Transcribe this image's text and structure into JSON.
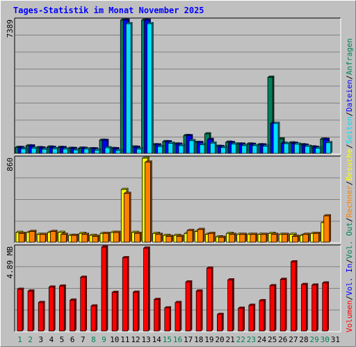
{
  "title": "Tages-Statistik im Monat November 2025",
  "colors": {
    "background": "#c0c0c0",
    "title": "#0000ff",
    "hits": "#00805a",
    "files": "#0000ff",
    "pages": "#00e0ff",
    "visits": "#ffff00",
    "sites": "#ff8000",
    "kbytes": "#ff0000",
    "weekend_label": "#00805a"
  },
  "legend_right": [
    {
      "text": "Volumen",
      "color": "#ff0000"
    },
    {
      "text": "/",
      "color": "#000000"
    },
    {
      "text": "Vol. In",
      "color": "#0000ff"
    },
    {
      "text": "/",
      "color": "#000000"
    },
    {
      "text": "Vol. Out",
      "color": "#00805a"
    },
    {
      "text": "/",
      "color": "#000000"
    },
    {
      "text": "Rechner",
      "color": "#ff8000"
    },
    {
      "text": "/",
      "color": "#000000"
    },
    {
      "text": "Besuche",
      "color": "#ffff00"
    },
    {
      "text": "/",
      "color": "#000000"
    },
    {
      "text": "Seiten",
      "color": "#00e0ff"
    },
    {
      "text": "/",
      "color": "#000000"
    },
    {
      "text": "Dateien",
      "color": "#0000ff"
    },
    {
      "text": "/",
      "color": "#000000"
    },
    {
      "text": "Anfragen",
      "color": "#00805a"
    }
  ],
  "chart_data": [
    {
      "type": "bar",
      "panel": "top",
      "ylabel": "7389",
      "ylim": [
        0,
        7389
      ],
      "grid": true,
      "categories": [
        "1",
        "2",
        "3",
        "4",
        "5",
        "6",
        "7",
        "8",
        "9",
        "10",
        "11",
        "12",
        "13",
        "14",
        "15",
        "16",
        "17",
        "18",
        "19",
        "20",
        "21",
        "22",
        "23",
        "24",
        "25",
        "26",
        "27",
        "28",
        "29",
        "30"
      ],
      "series": [
        {
          "name": "Anfragen",
          "color": "#00805a",
          "values": [
            330,
            420,
            320,
            350,
            330,
            280,
            290,
            260,
            730,
            270,
            7390,
            350,
            7390,
            480,
            650,
            520,
            990,
            610,
            1080,
            390,
            620,
            520,
            520,
            480,
            4220,
            800,
            580,
            480,
            360,
            790
          ]
        },
        {
          "name": "Dateien",
          "color": "#0000ff",
          "values": [
            320,
            410,
            300,
            330,
            320,
            270,
            280,
            250,
            720,
            260,
            7390,
            340,
            7390,
            470,
            640,
            510,
            980,
            600,
            770,
            380,
            600,
            510,
            500,
            470,
            1660,
            560,
            560,
            460,
            340,
            780
          ]
        },
        {
          "name": "Seiten",
          "color": "#00e0ff",
          "values": [
            250,
            290,
            230,
            260,
            240,
            190,
            240,
            180,
            310,
            160,
            7190,
            240,
            7190,
            380,
            560,
            430,
            700,
            480,
            570,
            320,
            520,
            430,
            430,
            400,
            1660,
            540,
            510,
            390,
            290,
            590
          ]
        }
      ]
    },
    {
      "type": "bar",
      "panel": "middle",
      "ylabel": "860",
      "ylim": [
        0,
        860
      ],
      "grid": true,
      "categories": [
        "1",
        "2",
        "3",
        "4",
        "5",
        "6",
        "7",
        "8",
        "9",
        "10",
        "11",
        "12",
        "13",
        "14",
        "15",
        "16",
        "17",
        "18",
        "19",
        "20",
        "21",
        "22",
        "23",
        "24",
        "25",
        "26",
        "27",
        "28",
        "29",
        "30"
      ],
      "series": [
        {
          "name": "Besuche",
          "color": "#ffff00",
          "values": [
            100,
            100,
            80,
            100,
            100,
            70,
            90,
            70,
            90,
            100,
            540,
            100,
            860,
            90,
            70,
            70,
            90,
            110,
            80,
            55,
            90,
            80,
            80,
            80,
            90,
            80,
            80,
            70,
            90,
            200
          ]
        },
        {
          "name": "Rechner",
          "color": "#ff8000",
          "values": [
            90,
            110,
            80,
            110,
            80,
            70,
            80,
            60,
            90,
            100,
            500,
            90,
            820,
            80,
            60,
            60,
            120,
            130,
            90,
            50,
            80,
            80,
            80,
            80,
            80,
            80,
            60,
            80,
            90,
            270
          ]
        }
      ]
    },
    {
      "type": "bar",
      "panel": "bottom",
      "ylabel": "4.89 MB",
      "ylim": [
        0,
        4.89
      ],
      "grid": true,
      "categories": [
        "1",
        "2",
        "3",
        "4",
        "5",
        "6",
        "7",
        "8",
        "9",
        "10",
        "11",
        "12",
        "13",
        "14",
        "15",
        "16",
        "17",
        "18",
        "19",
        "20",
        "21",
        "22",
        "23",
        "24",
        "25",
        "26",
        "27",
        "28",
        "29",
        "30"
      ],
      "series": [
        {
          "name": "Volumen",
          "color": "#ff0000",
          "values": [
            2.43,
            2.33,
            1.66,
            2.56,
            2.62,
            1.8,
            3.13,
            1.46,
            4.89,
            2.25,
            4.27,
            2.26,
            4.83,
            1.84,
            1.35,
            1.66,
            2.86,
            2.33,
            3.66,
            0.97,
            2.98,
            1.33,
            1.5,
            1.77,
            2.64,
            3.01,
            4.03,
            2.71,
            2.68,
            2.8
          ]
        }
      ]
    }
  ],
  "x_labels": [
    {
      "text": "1",
      "color": "#00805a"
    },
    {
      "text": "2",
      "color": "#00805a"
    },
    {
      "text": "3",
      "color": "#000000"
    },
    {
      "text": "4",
      "color": "#000000"
    },
    {
      "text": "5",
      "color": "#000000"
    },
    {
      "text": "6",
      "color": "#000000"
    },
    {
      "text": "7",
      "color": "#000000"
    },
    {
      "text": "8",
      "color": "#00805a"
    },
    {
      "text": "9",
      "color": "#00805a"
    },
    {
      "text": "10",
      "color": "#000000"
    },
    {
      "text": "11",
      "color": "#000000"
    },
    {
      "text": "12",
      "color": "#000000"
    },
    {
      "text": "13",
      "color": "#000000"
    },
    {
      "text": "14",
      "color": "#000000"
    },
    {
      "text": "15",
      "color": "#00805a"
    },
    {
      "text": "16",
      "color": "#00805a"
    },
    {
      "text": "17",
      "color": "#000000"
    },
    {
      "text": "18",
      "color": "#000000"
    },
    {
      "text": "19",
      "color": "#000000"
    },
    {
      "text": "20",
      "color": "#000000"
    },
    {
      "text": "21",
      "color": "#000000"
    },
    {
      "text": "22",
      "color": "#00805a"
    },
    {
      "text": "23",
      "color": "#00805a"
    },
    {
      "text": "24",
      "color": "#000000"
    },
    {
      "text": "25",
      "color": "#000000"
    },
    {
      "text": "26",
      "color": "#000000"
    },
    {
      "text": "27",
      "color": "#000000"
    },
    {
      "text": "28",
      "color": "#000000"
    },
    {
      "text": "29",
      "color": "#00805a"
    },
    {
      "text": "30",
      "color": "#00805a"
    },
    {
      "text": "31",
      "color": "#000000"
    }
  ]
}
